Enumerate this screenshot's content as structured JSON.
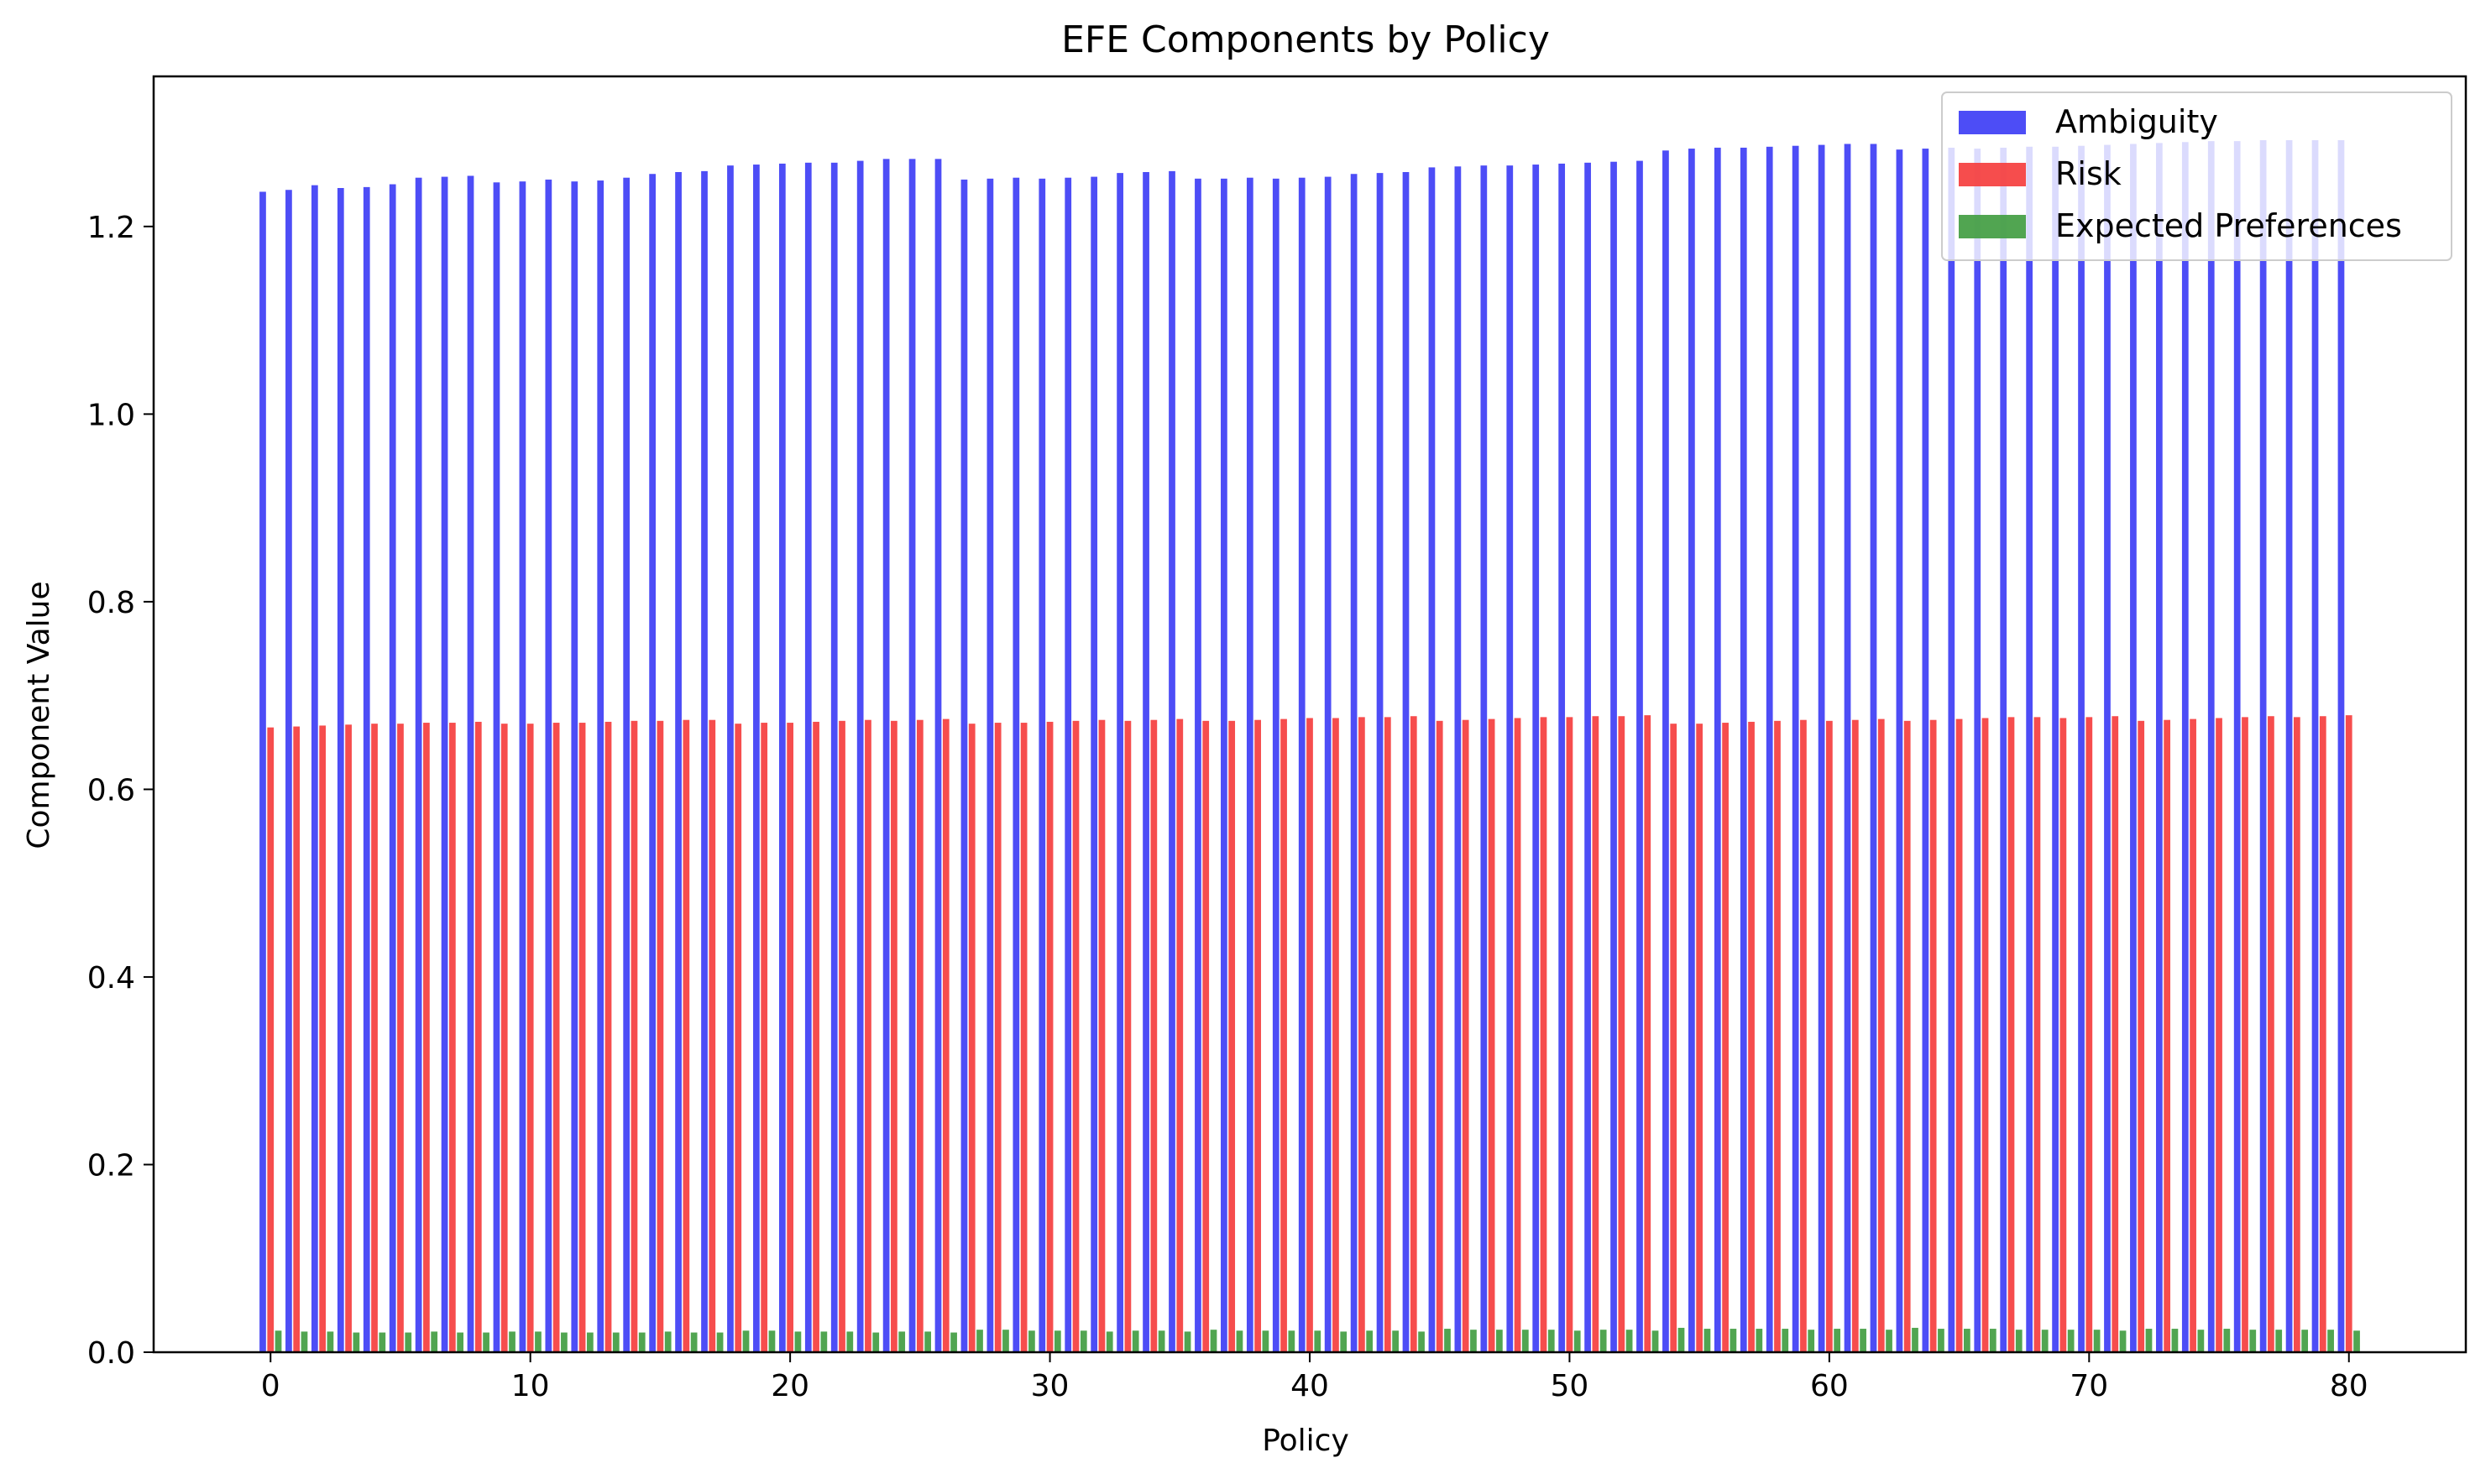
{
  "chart_data": {
    "type": "bar",
    "title": "EFE Components by Policy",
    "xlabel": "Policy",
    "ylabel": "Component Value",
    "xlim": [
      -4.5,
      84.5
    ],
    "ylim": [
      0,
      1.36
    ],
    "xticks": [
      0,
      10,
      20,
      30,
      40,
      50,
      60,
      70,
      80
    ],
    "xtick_labels": [
      "0",
      "10",
      "20",
      "30",
      "40",
      "50",
      "60",
      "70",
      "80"
    ],
    "yticks": [
      0,
      0.2,
      0.4,
      0.6,
      0.8,
      1.0,
      1.2
    ],
    "ytick_labels": [
      "0.0",
      "0.2",
      "0.4",
      "0.6",
      "0.8",
      "1.0",
      "1.2"
    ],
    "grid": false,
    "legend_position": "top-right",
    "bar_width": 0.25,
    "x": [
      0,
      1,
      2,
      3,
      4,
      5,
      6,
      7,
      8,
      9,
      10,
      11,
      12,
      13,
      14,
      15,
      16,
      17,
      18,
      19,
      20,
      21,
      22,
      23,
      24,
      25,
      26,
      27,
      28,
      29,
      30,
      31,
      32,
      33,
      34,
      35,
      36,
      37,
      38,
      39,
      40,
      41,
      42,
      43,
      44,
      45,
      46,
      47,
      48,
      49,
      50,
      51,
      52,
      53,
      54,
      55,
      56,
      57,
      58,
      59,
      60,
      61,
      62,
      63,
      64,
      65,
      66,
      67,
      68,
      69,
      70,
      71,
      72,
      73,
      74,
      75,
      76,
      77,
      78,
      79,
      80
    ],
    "series": [
      {
        "name": "Ambiguity",
        "color": "#4343f5",
        "offset": -0.3,
        "values": [
          1.237,
          1.239,
          1.244,
          1.241,
          1.242,
          1.245,
          1.252,
          1.253,
          1.254,
          1.247,
          1.248,
          1.25,
          1.248,
          1.249,
          1.252,
          1.256,
          1.258,
          1.259,
          1.265,
          1.266,
          1.267,
          1.268,
          1.268,
          1.27,
          1.272,
          1.272,
          1.272,
          1.25,
          1.251,
          1.252,
          1.251,
          1.252,
          1.253,
          1.257,
          1.258,
          1.259,
          1.251,
          1.251,
          1.252,
          1.251,
          1.252,
          1.253,
          1.256,
          1.257,
          1.258,
          1.263,
          1.264,
          1.265,
          1.265,
          1.266,
          1.267,
          1.268,
          1.269,
          1.27,
          1.281,
          1.283,
          1.284,
          1.284,
          1.285,
          1.286,
          1.287,
          1.288,
          1.288,
          1.282,
          1.283,
          1.284,
          1.283,
          1.284,
          1.285,
          1.285,
          1.286,
          1.287,
          1.288,
          1.289,
          1.29,
          1.291,
          1.291,
          1.292,
          1.292,
          1.292,
          1.292
        ]
      },
      {
        "name": "Risk",
        "color": "#f54343",
        "offset": 0,
        "values": [
          0.666,
          0.667,
          0.668,
          0.669,
          0.67,
          0.67,
          0.671,
          0.671,
          0.672,
          0.67,
          0.67,
          0.671,
          0.671,
          0.672,
          0.673,
          0.673,
          0.674,
          0.674,
          0.67,
          0.671,
          0.671,
          0.672,
          0.673,
          0.674,
          0.673,
          0.674,
          0.675,
          0.67,
          0.671,
          0.671,
          0.672,
          0.673,
          0.674,
          0.673,
          0.674,
          0.675,
          0.673,
          0.673,
          0.674,
          0.675,
          0.676,
          0.676,
          0.677,
          0.677,
          0.678,
          0.673,
          0.674,
          0.675,
          0.676,
          0.677,
          0.677,
          0.678,
          0.678,
          0.679,
          0.67,
          0.67,
          0.671,
          0.672,
          0.673,
          0.674,
          0.673,
          0.674,
          0.675,
          0.673,
          0.674,
          0.675,
          0.676,
          0.677,
          0.677,
          0.676,
          0.677,
          0.678,
          0.673,
          0.674,
          0.675,
          0.676,
          0.677,
          0.678,
          0.677,
          0.678,
          0.679
        ]
      },
      {
        "name": "Expected Preferences",
        "color": "#48a048",
        "offset": 0.3,
        "values": [
          0.023,
          0.022,
          0.022,
          0.021,
          0.021,
          0.021,
          0.022,
          0.021,
          0.021,
          0.022,
          0.022,
          0.021,
          0.021,
          0.021,
          0.021,
          0.022,
          0.021,
          0.021,
          0.023,
          0.023,
          0.022,
          0.022,
          0.022,
          0.021,
          0.022,
          0.022,
          0.021,
          0.024,
          0.024,
          0.023,
          0.023,
          0.023,
          0.022,
          0.023,
          0.023,
          0.022,
          0.024,
          0.023,
          0.023,
          0.023,
          0.023,
          0.022,
          0.023,
          0.023,
          0.022,
          0.025,
          0.024,
          0.024,
          0.024,
          0.024,
          0.023,
          0.024,
          0.024,
          0.023,
          0.026,
          0.025,
          0.025,
          0.025,
          0.025,
          0.024,
          0.025,
          0.025,
          0.024,
          0.026,
          0.025,
          0.025,
          0.025,
          0.024,
          0.024,
          0.024,
          0.024,
          0.023,
          0.025,
          0.025,
          0.024,
          0.025,
          0.024,
          0.024,
          0.024,
          0.024,
          0.023
        ]
      }
    ]
  }
}
